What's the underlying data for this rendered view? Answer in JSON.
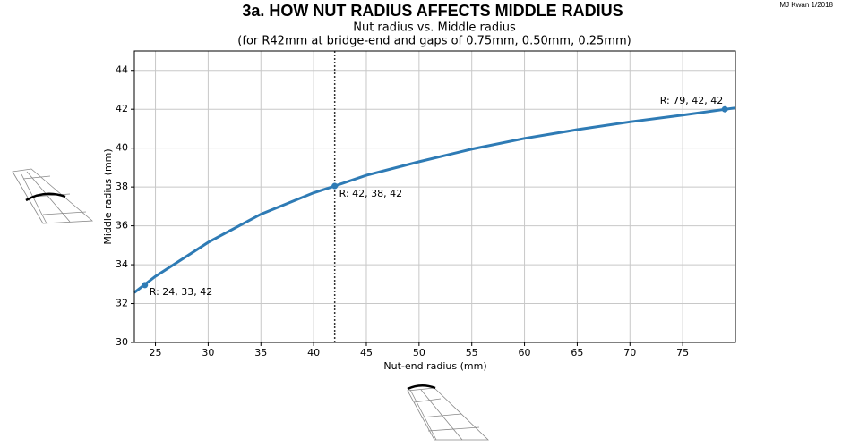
{
  "chart_data": {
    "type": "line",
    "title": "3a. HOW NUT RADIUS AFFECTS MIDDLE RADIUS",
    "subtitle": [
      "Nut radius vs. Middle radius",
      "(for R42mm at bridge-end and gaps of 0.75mm, 0.50mm, 0.25mm)"
    ],
    "credit": "MJ Kwan 1/2018",
    "xlabel": "Nut-end radius (mm)",
    "ylabel": "Middle radius (mm)",
    "x": [
      23,
      25,
      30,
      35,
      40,
      42,
      45,
      50,
      55,
      60,
      65,
      70,
      75,
      80
    ],
    "values": [
      32.57,
      33.4,
      35.15,
      36.6,
      37.7,
      38.05,
      38.6,
      39.3,
      39.95,
      40.5,
      40.95,
      41.35,
      41.7,
      42.07
    ],
    "color": "#2e7bb5",
    "markers": {
      "x": [
        24,
        42,
        79
      ],
      "values": [
        32.95,
        38.05,
        42
      ]
    },
    "annotations": [
      "R: 24, 33, 42",
      "R: 42, 38, 42",
      "R: 79, 42, 42"
    ],
    "vline": 42,
    "xlim": [
      23,
      80
    ],
    "ylim": [
      30,
      45
    ],
    "xticks": [
      25,
      30,
      35,
      40,
      45,
      50,
      55,
      60,
      65,
      70,
      75
    ],
    "yticks": [
      30,
      32,
      34,
      36,
      38,
      40,
      42,
      44
    ],
    "grid": true
  }
}
